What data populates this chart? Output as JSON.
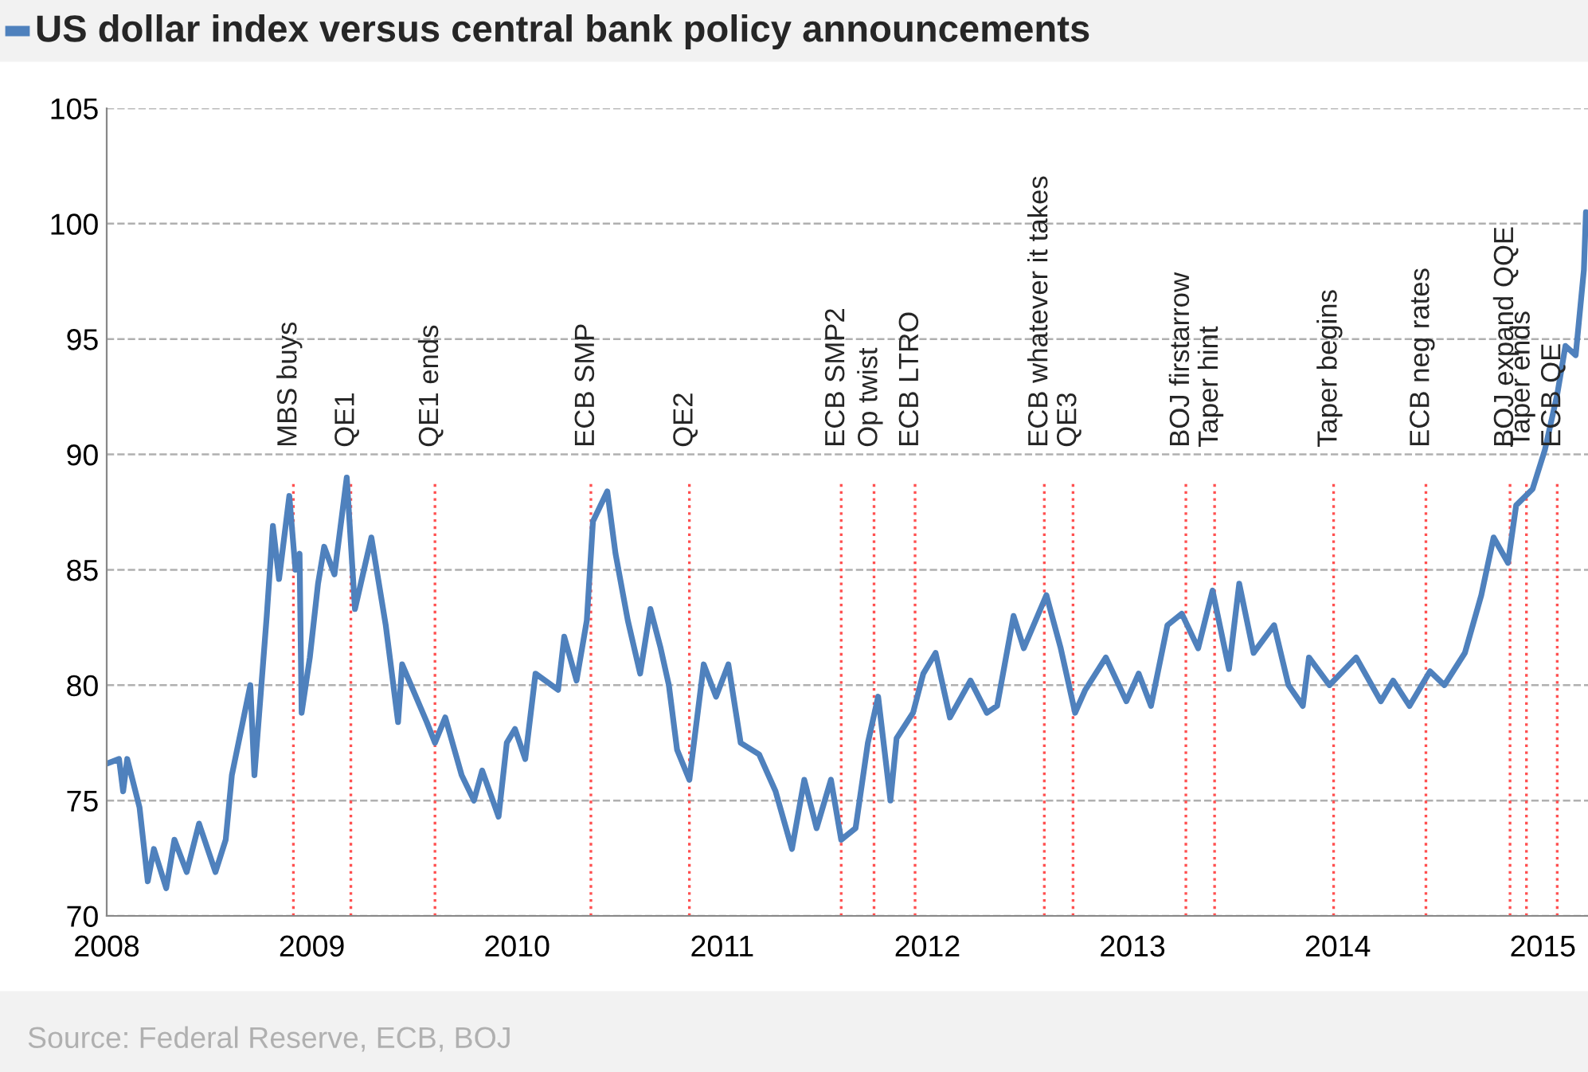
{
  "chart_data": {
    "type": "line",
    "title": "US dollar index versus central bank policy announcements",
    "annotations": [
      "Source: Federal Reserve, ECB, BOJ"
    ],
    "series": [
      {
        "color": "#4f81bd",
        "x": [
          2008.0,
          2008.06,
          2008.08,
          2008.1,
          2008.16,
          2008.2,
          2008.23,
          2008.29,
          2008.33,
          2008.39,
          2008.45,
          2008.53,
          2008.58,
          2008.61,
          2008.7,
          2008.72,
          2008.78,
          2008.81,
          2008.84,
          2008.89,
          2008.92,
          2008.94,
          2008.95,
          2008.99,
          2009.03,
          2009.06,
          2009.11,
          2009.17,
          2009.21,
          2009.29,
          2009.36,
          2009.42,
          2009.44,
          2009.56,
          2009.6,
          2009.65,
          2009.73,
          2009.79,
          2009.83,
          2009.91,
          2009.95,
          2009.99,
          2010.04,
          2010.09,
          2010.2,
          2010.23,
          2010.29,
          2010.34,
          2010.37,
          2010.44,
          2010.48,
          2010.54,
          2010.6,
          2010.65,
          2010.7,
          2010.74,
          2010.78,
          2010.84,
          2010.91,
          2010.97,
          2011.03,
          2011.09,
          2011.18,
          2011.26,
          2011.34,
          2011.4,
          2011.46,
          2011.53,
          2011.58,
          2011.65,
          2011.71,
          2011.76,
          2011.82,
          2011.85,
          2011.93,
          2011.98,
          2012.04,
          2012.11,
          2012.21,
          2012.29,
          2012.34,
          2012.42,
          2012.47,
          2012.58,
          2012.65,
          2012.72,
          2012.77,
          2012.87,
          2012.97,
          2013.03,
          2013.09,
          2013.17,
          2013.24,
          2013.32,
          2013.39,
          2013.47,
          2013.52,
          2013.59,
          2013.69,
          2013.76,
          2013.83,
          2013.86,
          2013.96,
          2014.09,
          2014.21,
          2014.27,
          2014.35,
          2014.45,
          2014.52,
          2014.62,
          2014.7,
          2014.76,
          2014.83,
          2014.87,
          2014.95,
          2015.01,
          2015.07,
          2015.11,
          2015.16,
          2015.2,
          2015.21
        ],
        "values": [
          76.6,
          76.8,
          75.4,
          76.8,
          74.7,
          71.5,
          72.9,
          71.2,
          73.3,
          71.9,
          74.0,
          71.9,
          73.3,
          76.1,
          80.0,
          76.1,
          83.0,
          86.9,
          84.6,
          88.2,
          85.0,
          85.7,
          78.8,
          81.2,
          84.4,
          86.0,
          84.8,
          89.0,
          83.3,
          86.4,
          82.6,
          78.4,
          80.9,
          78.4,
          77.5,
          78.6,
          76.1,
          75.0,
          76.3,
          74.3,
          77.5,
          78.1,
          76.8,
          80.5,
          79.8,
          82.1,
          80.2,
          82.8,
          87.1,
          88.4,
          85.7,
          82.8,
          80.5,
          83.3,
          81.6,
          80.0,
          77.2,
          75.9,
          80.9,
          79.5,
          80.9,
          77.5,
          77.0,
          75.4,
          72.9,
          75.9,
          73.8,
          75.9,
          73.3,
          73.8,
          77.5,
          79.5,
          75.0,
          77.7,
          78.8,
          80.5,
          81.4,
          78.6,
          80.2,
          78.8,
          79.1,
          83.0,
          81.6,
          83.9,
          81.6,
          78.8,
          79.8,
          81.2,
          79.3,
          80.5,
          79.1,
          82.6,
          83.1,
          81.6,
          84.1,
          80.7,
          84.4,
          81.4,
          82.6,
          80.0,
          79.1,
          81.2,
          80.0,
          81.2,
          79.3,
          80.2,
          79.1,
          80.6,
          80.0,
          81.4,
          83.9,
          86.4,
          85.3,
          87.8,
          88.5,
          90.2,
          92.6,
          94.7,
          94.3,
          98.0,
          100.5
        ]
      }
    ],
    "xlim": [
      2008,
      2015.22
    ],
    "xticks": [
      2008,
      2009,
      2010,
      2011,
      2012,
      2013,
      2014,
      2015
    ],
    "ylim": [
      70,
      105
    ],
    "yticks": [
      70,
      75,
      80,
      85,
      90,
      95,
      100,
      105
    ],
    "grid": "y",
    "legend": false,
    "marker": "none",
    "line_style": "solid",
    "ref_lines": [
      {
        "axis": "x",
        "value": 2008.91,
        "label": "MBS buys",
        "color": "#ff5050",
        "line_style": "dotted"
      },
      {
        "axis": "x",
        "value": 2009.19,
        "label": "QE1",
        "color": "#ff5050",
        "line_style": "dotted"
      },
      {
        "axis": "x",
        "value": 2009.6,
        "label": "QE1 ends",
        "color": "#ff5050",
        "line_style": "dotted"
      },
      {
        "axis": "x",
        "value": 2010.36,
        "label": "ECB SMP",
        "color": "#ff5050",
        "line_style": "dotted"
      },
      {
        "axis": "x",
        "value": 2010.84,
        "label": "QE2",
        "color": "#ff5050",
        "line_style": "dotted"
      },
      {
        "axis": "x",
        "value": 2011.58,
        "label": "ECB SMP2",
        "color": "#ff5050",
        "line_style": "dotted"
      },
      {
        "axis": "x",
        "value": 2011.74,
        "label": "Op twist",
        "color": "#ff5050",
        "line_style": "dotted"
      },
      {
        "axis": "x",
        "value": 2011.94,
        "label": "ECB LTRO",
        "color": "#ff5050",
        "line_style": "dotted"
      },
      {
        "axis": "x",
        "value": 2012.57,
        "label": "ECB whatever it takes",
        "color": "#ff5050",
        "line_style": "dotted"
      },
      {
        "axis": "x",
        "value": 2012.71,
        "label": "QE3",
        "color": "#ff5050",
        "line_style": "dotted"
      },
      {
        "axis": "x",
        "value": 2013.26,
        "label": "BOJ firstarrow",
        "color": "#ff5050",
        "line_style": "dotted"
      },
      {
        "axis": "x",
        "value": 2013.4,
        "label": "Taper hint",
        "color": "#ff5050",
        "line_style": "dotted"
      },
      {
        "axis": "x",
        "value": 2013.98,
        "label": "Taper begins",
        "color": "#ff5050",
        "line_style": "dotted"
      },
      {
        "axis": "x",
        "value": 2014.43,
        "label": "ECB neg rates",
        "color": "#ff5050",
        "line_style": "dotted"
      },
      {
        "axis": "x",
        "value": 2014.84,
        "label": "BOJ expand QQE",
        "color": "#ff5050",
        "line_style": "dotted"
      },
      {
        "axis": "x",
        "value": 2014.92,
        "label": "Taper ends",
        "color": "#ff5050",
        "line_style": "dotted"
      },
      {
        "axis": "x",
        "value": 2015.07,
        "label": "ECB QE",
        "color": "#ff5050",
        "line_style": "dotted"
      }
    ]
  }
}
